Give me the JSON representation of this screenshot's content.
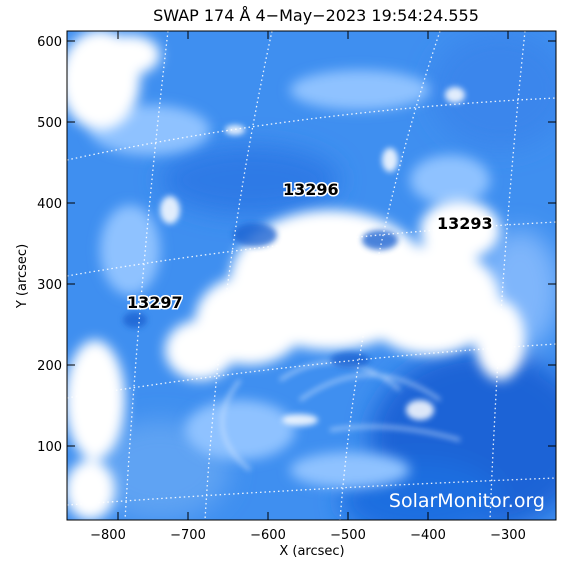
{
  "header": {
    "title": "SWAP 174 Å  4−May−2023 19:54:24.555"
  },
  "axes": {
    "x_label": "X (arcsec)",
    "y_label": "Y (arcsec)",
    "x_ticks": [
      "−800",
      "−700",
      "−600",
      "−500",
      "−400",
      "−300"
    ],
    "y_ticks": [
      "100",
      "200",
      "300",
      "400",
      "500",
      "600"
    ]
  },
  "active_regions": [
    {
      "id": "ar-13296",
      "label": "13296"
    },
    {
      "id": "ar-13293",
      "label": "13293"
    },
    {
      "id": "ar-13297",
      "label": "13297"
    }
  ],
  "watermark": "SolarMonitor.org",
  "colors": {
    "deep_blue": "#1a63d6",
    "mid_blue": "#3f8ff0",
    "light_blue": "#8fc2ff",
    "white": "#ffffff"
  }
}
